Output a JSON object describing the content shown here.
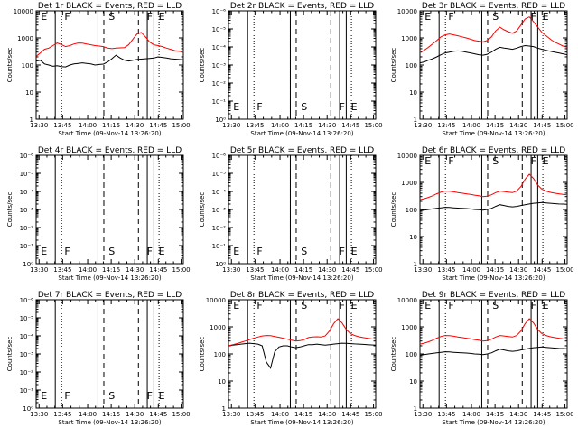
{
  "chart_data": [
    {
      "type": "line",
      "title": "Det 1r BLACK = Events, RED = LLD",
      "xlabel": "Start Time (09-Nov-14 13:26:20)",
      "ylabel": "Counts/sec",
      "yscale": "log",
      "yticks": [
        "1",
        "10",
        "100",
        "1000",
        "10000"
      ],
      "xticks": [
        "13:30",
        "13:45",
        "14:00",
        "14:15",
        "14:30",
        "14:45",
        "15:00"
      ],
      "markers": [
        "E",
        "F",
        "S",
        "F",
        "E"
      ],
      "series": [
        {
          "name": "Events",
          "color": "#000000",
          "profile": "A",
          "values": [
            140,
            150,
            110,
            100,
            90,
            95,
            88,
            85,
            100,
            110,
            115,
            120,
            115,
            110,
            100,
            105,
            108,
            130,
            170,
            230,
            180,
            150,
            140,
            150,
            160,
            165,
            170,
            175,
            180,
            200,
            190,
            180,
            170,
            165,
            160,
            155
          ]
        },
        {
          "name": "LLD",
          "color": "#ff0000",
          "profile": "A",
          "values": [
            210,
            280,
            380,
            420,
            520,
            650,
            570,
            480,
            520,
            600,
            650,
            640,
            600,
            560,
            520,
            500,
            480,
            420,
            400,
            420,
            430,
            440,
            560,
            900,
            1400,
            1600,
            1100,
            700,
            560,
            520,
            480,
            420,
            380,
            340,
            320,
            300
          ]
        }
      ],
      "events_drop": true
    },
    {
      "type": "line",
      "title": "Det 2r BLACK = Events, RED = LLD",
      "xlabel": "Start Time (09-Nov-14 13:26:20)",
      "ylabel": "Counts/sec",
      "yscale": "log",
      "yticks": [
        "10⁰",
        "10⁻¹",
        "10⁻²",
        "10⁻³",
        "10⁻⁴",
        "10⁻⁵",
        "10⁻⁶"
      ],
      "xticks": [
        "13:30",
        "13:45",
        "14:00",
        "14:15",
        "14:30",
        "14:45",
        "15:00"
      ],
      "markers": [
        "E",
        "F",
        "S",
        "F",
        "E"
      ],
      "series": []
    },
    {
      "type": "line",
      "title": "Det 3r BLACK = Events, RED = LLD",
      "xlabel": "Start Time (09-Nov-14 13:26:20)",
      "ylabel": "Counts/sec",
      "yscale": "log",
      "yticks": [
        "1",
        "10",
        "100",
        "1000",
        "10000"
      ],
      "xticks": [
        "13:30",
        "13:45",
        "14:00",
        "14:15",
        "14:30",
        "14:45",
        "15:00"
      ],
      "markers": [
        "E",
        "F",
        "S",
        "F",
        "E"
      ],
      "series": [
        {
          "name": "Events",
          "color": "#000000",
          "values": [
            120,
            130,
            150,
            170,
            200,
            240,
            280,
            300,
            320,
            330,
            320,
            300,
            280,
            260,
            240,
            230,
            250,
            300,
            380,
            450,
            420,
            400,
            380,
            420,
            480,
            520,
            500,
            480,
            420,
            380,
            350,
            320,
            300,
            280,
            260,
            240
          ]
        },
        {
          "name": "LLD",
          "color": "#ff0000",
          "values": [
            300,
            350,
            450,
            600,
            800,
            1100,
            1300,
            1400,
            1300,
            1200,
            1100,
            1000,
            900,
            800,
            760,
            720,
            800,
            1100,
            1800,
            2500,
            2000,
            1700,
            1500,
            1800,
            3000,
            5000,
            6000,
            4000,
            2500,
            1600,
            1200,
            900,
            700,
            600,
            500,
            450
          ]
        }
      ]
    },
    {
      "type": "line",
      "title": "Det 4r BLACK = Events, RED = LLD",
      "xlabel": "Start Time (09-Nov-14 13:26:20)",
      "ylabel": "Counts/sec",
      "yscale": "log",
      "yticks": [
        "10⁰",
        "10⁻¹",
        "10⁻²",
        "10⁻³",
        "10⁻⁴",
        "10⁻⁵",
        "10⁻⁶"
      ],
      "xticks": [
        "13:30",
        "13:45",
        "14:00",
        "14:15",
        "14:30",
        "14:45",
        "15:00"
      ],
      "markers": [
        "E",
        "F",
        "S",
        "F",
        "E"
      ],
      "series": []
    },
    {
      "type": "line",
      "title": "Det 5r BLACK = Events, RED = LLD",
      "xlabel": "Start Time (09-Nov-14 13:26:20)",
      "ylabel": "Counts/sec",
      "yscale": "log",
      "yticks": [
        "10⁰",
        "10⁻¹",
        "10⁻²",
        "10⁻³",
        "10⁻⁴",
        "10⁻⁵",
        "10⁻⁶"
      ],
      "xticks": [
        "13:30",
        "13:45",
        "14:00",
        "14:15",
        "14:30",
        "14:45",
        "15:00"
      ],
      "markers": [
        "E",
        "F",
        "S",
        "F",
        "E"
      ],
      "series": []
    },
    {
      "type": "line",
      "title": "Det 6r BLACK = Events, RED = LLD",
      "xlabel": "Start Time (09-Nov-14 13:26:20)",
      "ylabel": "Counts/sec",
      "yscale": "log",
      "yticks": [
        "1",
        "10",
        "100",
        "1000",
        "10000"
      ],
      "xticks": [
        "13:30",
        "13:45",
        "14:00",
        "14:15",
        "14:30",
        "14:45",
        "15:00"
      ],
      "markers": [
        "E",
        "F",
        "S",
        "F",
        "E"
      ],
      "series": [
        {
          "name": "Events",
          "color": "#000000",
          "values": [
            90,
            95,
            100,
            105,
            110,
            115,
            120,
            118,
            115,
            112,
            110,
            108,
            105,
            100,
            98,
            95,
            100,
            110,
            130,
            150,
            140,
            130,
            125,
            130,
            140,
            150,
            160,
            170,
            175,
            180,
            175,
            170,
            165,
            160,
            158,
            155
          ]
        },
        {
          "name": "LLD",
          "color": "#ff0000",
          "values": [
            230,
            250,
            280,
            320,
            380,
            440,
            480,
            470,
            450,
            420,
            400,
            380,
            360,
            340,
            320,
            300,
            310,
            350,
            420,
            480,
            460,
            440,
            420,
            480,
            700,
            1300,
            2000,
            1400,
            800,
            560,
            480,
            430,
            400,
            380,
            360,
            350
          ]
        }
      ]
    },
    {
      "type": "line",
      "title": "Det 7r BLACK = Events, RED = LLD",
      "xlabel": "Start Time (09-Nov-14 13:26:20)",
      "ylabel": "Counts/sec",
      "yscale": "log",
      "yticks": [
        "10⁰",
        "10⁻¹",
        "10⁻²",
        "10⁻³",
        "10⁻⁴",
        "10⁻⁵",
        "10⁻⁶"
      ],
      "xticks": [
        "13:30",
        "13:45",
        "14:00",
        "14:15",
        "14:30",
        "14:45",
        "15:00"
      ],
      "markers": [
        "E",
        "F",
        "S",
        "F",
        "E"
      ],
      "series": []
    },
    {
      "type": "line",
      "title": "Det 8r BLACK = Events, RED = LLD",
      "xlabel": "Start Time (09-Nov-14 13:26:20)",
      "ylabel": "Counts/sec",
      "yscale": "log",
      "yticks": [
        "1",
        "10",
        "100",
        "1000",
        "10000"
      ],
      "xticks": [
        "13:30",
        "13:45",
        "14:00",
        "14:15",
        "14:30",
        "14:45",
        "15:00"
      ],
      "markers": [
        "E",
        "F",
        "S",
        "F",
        "E"
      ],
      "series": [
        {
          "name": "Events",
          "color": "#000000",
          "values": [
            200,
            210,
            220,
            230,
            240,
            250,
            240,
            230,
            200,
            50,
            30,
            120,
            180,
            200,
            200,
            180,
            170,
            180,
            200,
            220,
            220,
            230,
            220,
            210,
            220,
            230,
            240,
            250,
            245,
            240,
            235,
            230,
            225,
            220,
            215,
            210
          ]
        },
        {
          "name": "LLD",
          "color": "#ff0000",
          "values": [
            200,
            220,
            240,
            270,
            300,
            340,
            380,
            420,
            460,
            480,
            470,
            440,
            410,
            380,
            350,
            320,
            300,
            310,
            340,
            400,
            420,
            430,
            420,
            460,
            700,
            1300,
            2000,
            1400,
            800,
            560,
            480,
            430,
            400,
            380,
            360,
            350
          ]
        }
      ]
    },
    {
      "type": "line",
      "title": "Det 9r BLACK = Events, RED = LLD",
      "xlabel": "Start Time (09-Nov-14 13:26:20)",
      "ylabel": "Counts/sec",
      "yscale": "log",
      "yticks": [
        "1",
        "10",
        "100",
        "1000",
        "10000"
      ],
      "xticks": [
        "13:30",
        "13:45",
        "14:00",
        "14:15",
        "14:30",
        "14:45",
        "15:00"
      ],
      "markers": [
        "E",
        "F",
        "S",
        "F",
        "E"
      ],
      "series": [
        {
          "name": "Events",
          "color": "#000000",
          "values": [
            90,
            95,
            100,
            105,
            110,
            115,
            120,
            118,
            115,
            112,
            110,
            108,
            105,
            100,
            98,
            95,
            100,
            110,
            130,
            150,
            140,
            130,
            125,
            130,
            140,
            150,
            160,
            170,
            175,
            180,
            175,
            170,
            165,
            160,
            158,
            155
          ]
        },
        {
          "name": "LLD",
          "color": "#ff0000",
          "values": [
            230,
            250,
            280,
            320,
            380,
            440,
            480,
            470,
            450,
            420,
            400,
            380,
            360,
            340,
            320,
            300,
            310,
            350,
            420,
            480,
            460,
            440,
            420,
            480,
            700,
            1300,
            2000,
            1400,
            800,
            560,
            480,
            430,
            400,
            380,
            360,
            350
          ]
        }
      ]
    }
  ]
}
